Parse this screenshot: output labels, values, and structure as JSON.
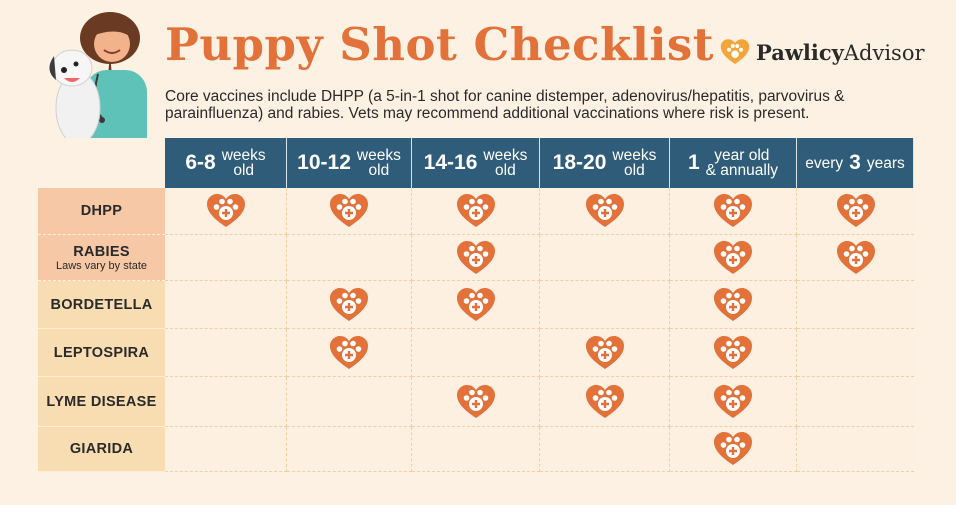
{
  "title": "Puppy Shot Checklist",
  "brand": {
    "bold": "Pawlicy",
    "rest": "Advisor"
  },
  "description": "Core vaccines include DHPP (a 5-in-1 shot for canine distemper, adenovirus/hepatitis, parvovirus & parainfluenza) and rabies. Vets may recommend additional vaccinations where risk is present.",
  "columns": [
    {
      "num": "6-8",
      "label": "weeks old"
    },
    {
      "num": "10-12",
      "label": "weeks old"
    },
    {
      "num": "14-16",
      "label": "weeks old"
    },
    {
      "num": "18-20",
      "label": "weeks old"
    },
    {
      "num": "1",
      "label": "year old & annually"
    },
    {
      "pre": "every",
      "num": "3",
      "label": "years"
    }
  ],
  "rows": [
    {
      "name": "DHPP",
      "group": "core",
      "cells": [
        true,
        true,
        true,
        true,
        true,
        true
      ]
    },
    {
      "name": "RABIES",
      "note": "Laws vary by state",
      "group": "core",
      "cells": [
        false,
        false,
        true,
        false,
        true,
        true
      ]
    },
    {
      "name": "BORDETELLA",
      "group": "optional",
      "cells": [
        false,
        true,
        true,
        false,
        true,
        false
      ]
    },
    {
      "name": "LEPTOSPIRA",
      "group": "optional",
      "cells": [
        false,
        true,
        false,
        true,
        true,
        false
      ]
    },
    {
      "name": "LYME DISEASE",
      "group": "optional",
      "cells": [
        false,
        false,
        true,
        true,
        true,
        false
      ]
    },
    {
      "name": "GIARIDA",
      "group": "optional",
      "cells": [
        false,
        false,
        false,
        false,
        true,
        false
      ]
    }
  ],
  "colors": {
    "accent": "#e2713a",
    "header": "#2f5c78",
    "core_row": "#f6c8a6",
    "optional_row": "#f8ddb2",
    "heart": "#e2713a"
  },
  "icons": {
    "mark": "heart-paw-icon",
    "logo": "heart-paw-logo-icon",
    "illustration": "vet-with-puppy-icon"
  }
}
